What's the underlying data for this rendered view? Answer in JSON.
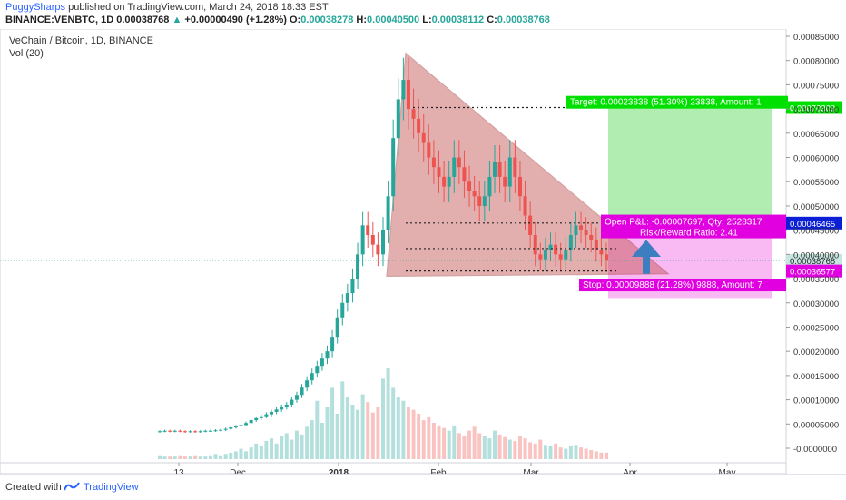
{
  "header": {
    "author": "PuggySharps",
    "published": "published on TradingView.com, March 24, 2018 18:33 EST",
    "symbol": "BINANCE:VENBTC, 1D",
    "last": "0.00038768",
    "change_arrow": "▲",
    "change": "+0.00000490 (+1.28%)",
    "o_label": "O:",
    "o": "0.00038278",
    "h_label": "H:",
    "h": "0.00040500",
    "l_label": "L:",
    "l": "0.00038112",
    "c_label": "C:",
    "c": "0.00038768"
  },
  "legend": {
    "title": "VeChain / Bitcoin, 1D, BINANCE",
    "volume": "Vol (20)"
  },
  "footer": {
    "created_with": "Created with",
    "brand": "TradingView"
  },
  "colors": {
    "up": "#26a69a",
    "down": "#ef5350",
    "triangle_fill": "#c0504d",
    "target_zone": "#9ee89e",
    "stop_zone": "#f7a8f0",
    "target_label_bg": "#00e000",
    "stop_label_bg": "#e000e0",
    "entry_label_bg": "#0a1fd6",
    "arrow": "#3d7ec0"
  },
  "position_tool": {
    "target_text": "Target: 0.00023838 (51.30%) 23838, Amount: 1",
    "stop_text": "Stop: 0.00009888 (21.28%) 9888, Amount: 7",
    "pnl_text": "Open P&L: -0.00007697, Qty: 2528317",
    "rr_text": "Risk/Reward Ratio: 2.41",
    "target_price": "0.00070303",
    "entry_price": "0.00046465",
    "current_price": "0.00038768",
    "stop_price": "0.00036577"
  },
  "chart_data": {
    "type": "candlestick",
    "title": "VeChain / Bitcoin, 1D, BINANCE",
    "y_axis_ticks": [
      "0.00085000",
      "0.00080000",
      "0.00075000",
      "0.00070000",
      "0.00065000",
      "0.00060000",
      "0.00055000",
      "0.00050000",
      "0.00045000",
      "0.00040000",
      "0.00035000",
      "0.00030000",
      "0.00025000",
      "0.00020000",
      "0.00015000",
      "0.00010000",
      "0.00005000",
      "-0.0000000"
    ],
    "x_axis_ticks": [
      "13",
      "Dec",
      "2018",
      "Feb",
      "Mar",
      "Apr",
      "May"
    ],
    "ylim": [
      0.0,
      0.00085
    ],
    "levels": {
      "target": 0.00070303,
      "entry": 0.00046465,
      "current": 0.00038768,
      "stop": 0.00036577
    },
    "close_series": [
      3.5e-05,
      3.6e-05,
      3.5e-05,
      3.6e-05,
      3.5e-05,
      3.4e-05,
      3.5e-05,
      3.4e-05,
      3.5e-05,
      3.6e-05,
      3.6e-05,
      3.7e-05,
      3.8e-05,
      4e-05,
      4.3e-05,
      4.5e-05,
      4.8e-05,
      5.2e-05,
      5.8e-05,
      6.2e-05,
      6.6e-05,
      7e-05,
      7.5e-05,
      8e-05,
      8.5e-05,
      9e-05,
      0.0001,
      0.00011,
      0.000125,
      0.00014,
      0.000155,
      0.00017,
      0.000185,
      0.0002,
      0.00023,
      0.00027,
      0.0003,
      0.00032,
      0.00035,
      0.0004,
      0.00046,
      0.00044,
      0.00042,
      0.0004,
      0.00045,
      0.00052,
      0.00064,
      0.00072,
      0.00076,
      0.0007,
      0.00068,
      0.00065,
      0.00063,
      0.0006,
      0.00058,
      0.00056,
      0.00054,
      0.00056,
      0.0006,
      0.00058,
      0.00055,
      0.00053,
      0.00052,
      0.0005,
      0.00052,
      0.00056,
      0.00059,
      0.00056,
      0.00054,
      0.0006,
      0.00056,
      0.00052,
      0.00048,
      0.00044,
      0.0004,
      0.00039,
      0.00041,
      0.00042,
      0.0004,
      0.00039,
      0.00041,
      0.00044,
      0.00046,
      0.00045,
      0.00044,
      0.00043,
      0.00041,
      0.0004,
      0.000387
    ],
    "volume_series": [
      3,
      2,
      2,
      2,
      3,
      2,
      2,
      3,
      2,
      2,
      3,
      4,
      3,
      4,
      5,
      6,
      8,
      6,
      9,
      12,
      10,
      14,
      16,
      12,
      18,
      20,
      15,
      22,
      19,
      25,
      30,
      45,
      28,
      40,
      55,
      35,
      60,
      48,
      42,
      38,
      50,
      44,
      36,
      40,
      62,
      70,
      55,
      48,
      45,
      40,
      38,
      35,
      30,
      33,
      28,
      26,
      24,
      22,
      26,
      20,
      18,
      22,
      25,
      20,
      18,
      16,
      22,
      19,
      17,
      15,
      14,
      18,
      16,
      13,
      12,
      15,
      11,
      10,
      12,
      9,
      8,
      10,
      11,
      9,
      8,
      7,
      6,
      5,
      5
    ]
  }
}
